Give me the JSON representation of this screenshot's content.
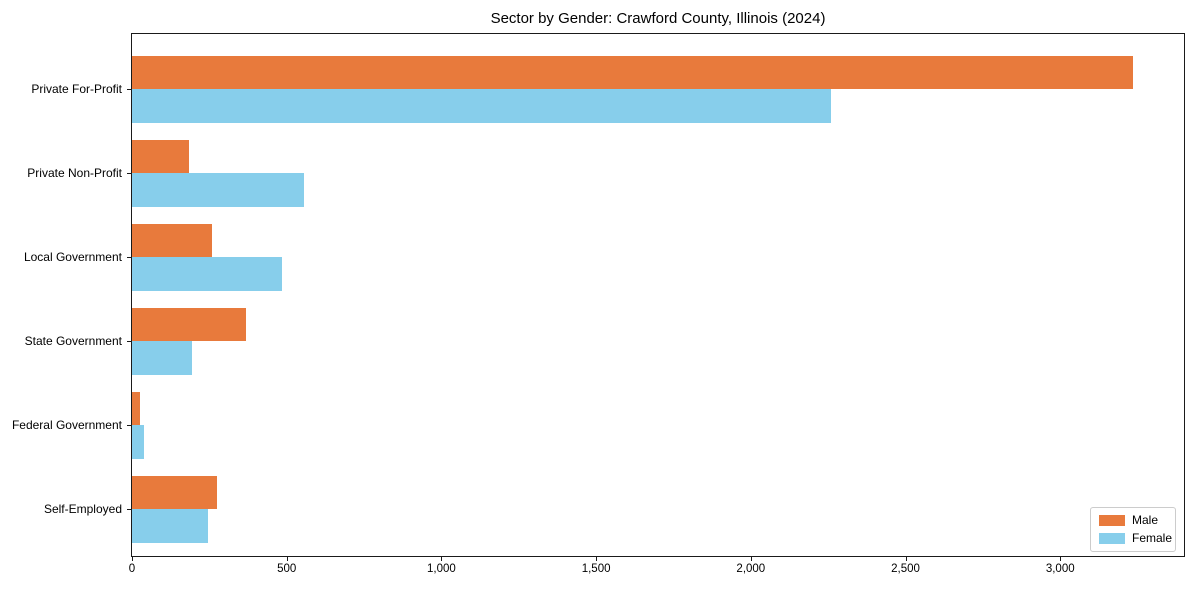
{
  "chart_data": {
    "type": "bar",
    "orientation": "horizontal",
    "title": "Sector by Gender: Crawford County, Illinois (2024)",
    "categories": [
      "Private For-Profit",
      "Private Non-Profit",
      "Local Government",
      "State Government",
      "Federal Government",
      "Self-Employed"
    ],
    "series": [
      {
        "name": "Male",
        "color": "#e87a3c",
        "values": [
          3235,
          185,
          260,
          370,
          25,
          275
        ]
      },
      {
        "name": "Female",
        "color": "#87ceeb",
        "values": [
          2260,
          555,
          485,
          195,
          40,
          245
        ]
      }
    ],
    "xlabel": "",
    "ylabel": "",
    "xlim": [
      0,
      3400
    ],
    "x_ticks": [
      0,
      500,
      1000,
      1500,
      2000,
      2500,
      3000
    ],
    "x_tick_labels": [
      "0",
      "500",
      "1,000",
      "1,500",
      "2,000",
      "2,500",
      "3,000"
    ],
    "grid": false,
    "legend_position": "lower right",
    "frame_color": "#1a1a1a",
    "background_color": "#ffffff"
  }
}
